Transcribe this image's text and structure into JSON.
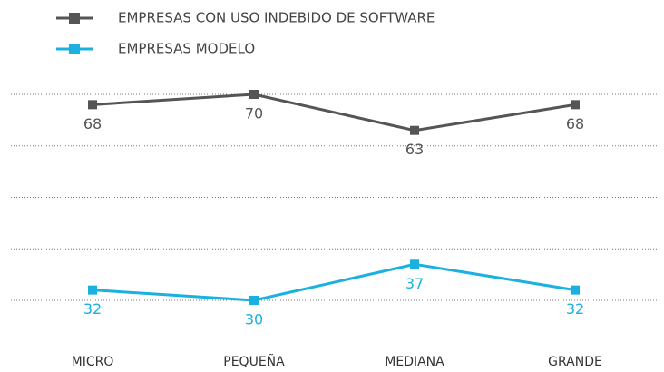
{
  "chart_data": {
    "type": "line",
    "categories": [
      "MICRO",
      "PEQUEÑA",
      "MEDIANA",
      "GRANDE"
    ],
    "series": [
      {
        "name": "EMPRESAS CON USO INDEBIDO DE SOFTWARE",
        "color": "#555555",
        "values": [
          68,
          70,
          63,
          68
        ]
      },
      {
        "name": "EMPRESAS MODELO",
        "color": "#1ab0e0",
        "values": [
          32,
          30,
          37,
          32
        ]
      }
    ],
    "ylim": [
      30,
      70
    ],
    "yticks": [
      30,
      40,
      50,
      60,
      70
    ],
    "grid": true,
    "legend": "top-left"
  }
}
